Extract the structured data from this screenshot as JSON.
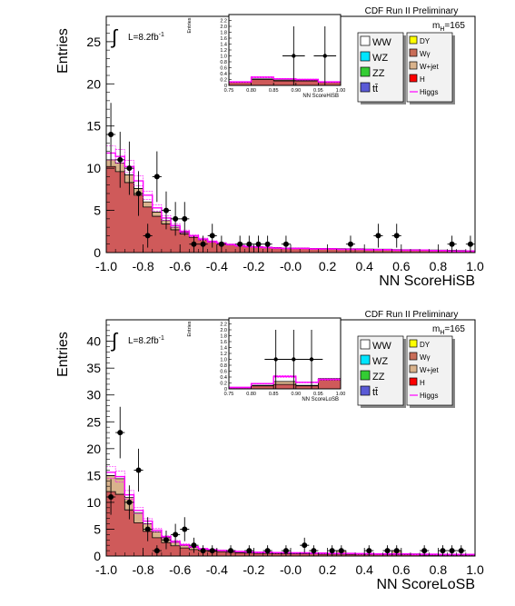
{
  "chart_data": [
    {
      "type": "bar",
      "ylabel": "Entries",
      "xlabel": "NN ScoreHiSB",
      "title": "CDF Run II Preliminary",
      "lumi_label": "L=8.2fb",
      "lumi_sup": "-1",
      "mass_label": "m",
      "mass_sub": "H",
      "mass_value": "=165",
      "xlim": [
        -1.0,
        1.0
      ],
      "ylim": [
        0,
        28
      ],
      "xticks": [
        "-1.0",
        "-0.8",
        "-0.6",
        "-0.4",
        "-0.2",
        "-0.0",
        "0.2",
        "0.4",
        "0.6",
        "0.8",
        "1.0"
      ],
      "yticks": [
        "0",
        "5",
        "10",
        "15",
        "20",
        "25"
      ],
      "yticks_vals": [
        0,
        5,
        10,
        15,
        20,
        25
      ],
      "bin_edges": [
        -1.0,
        -0.95,
        -0.9,
        -0.85,
        -0.8,
        -0.75,
        -0.7,
        -0.65,
        -0.6,
        -0.55,
        -0.5,
        -0.45,
        -0.4,
        -0.35,
        -0.3,
        -0.25,
        -0.2,
        -0.15,
        -0.1,
        -0.05,
        0.0,
        0.05,
        0.1,
        0.15,
        0.2,
        0.25,
        0.3,
        0.35,
        0.4,
        0.45,
        0.5,
        0.55,
        0.6,
        0.65,
        0.7,
        0.75,
        0.8,
        0.85,
        0.9,
        0.95,
        1.0
      ],
      "background": [
        10.2,
        9.6,
        8.3,
        6.8,
        5.4,
        4.3,
        3.4,
        2.7,
        2.2,
        1.8,
        1.5,
        1.25,
        1.05,
        0.9,
        0.8,
        0.7,
        0.65,
        0.6,
        0.55,
        0.5,
        0.5,
        0.5,
        0.5,
        0.45,
        0.45,
        0.45,
        0.4,
        0.4,
        0.4,
        0.35,
        0.35,
        0.35,
        0.3,
        0.3,
        0.3,
        0.3,
        0.25,
        0.25,
        0.2,
        0.2
      ],
      "total": [
        11.0,
        10.6,
        9.2,
        7.6,
        6.0,
        4.8,
        3.8,
        3.0,
        2.4,
        2.0,
        1.6,
        1.35,
        1.15,
        1.0,
        0.85,
        0.75,
        0.7,
        0.65,
        0.6,
        0.55,
        0.55,
        0.55,
        0.5,
        0.5,
        0.5,
        0.45,
        0.45,
        0.45,
        0.4,
        0.4,
        0.4,
        0.35,
        0.35,
        0.35,
        0.3,
        0.3,
        0.3,
        0.25,
        0.25,
        0.2
      ],
      "higgs": [
        11.8,
        11.4,
        10.2,
        8.5,
        6.8,
        5.3,
        4.1,
        3.2,
        2.5,
        2.0,
        1.6,
        1.3,
        1.1,
        0.95,
        0.8,
        0.7,
        0.65,
        0.6,
        0.55,
        0.5,
        0.5,
        0.5,
        0.45,
        0.45,
        0.45,
        0.4,
        0.4,
        0.4,
        0.35,
        0.35,
        0.35,
        0.3,
        0.3,
        0.3,
        0.3,
        0.25,
        0.25,
        0.2,
        0.2,
        0.2
      ],
      "data_x": [
        -0.975,
        -0.925,
        -0.875,
        -0.825,
        -0.775,
        -0.725,
        -0.675,
        -0.625,
        -0.575,
        -0.525,
        -0.475,
        -0.425,
        -0.375,
        -0.275,
        -0.225,
        -0.175,
        -0.125,
        -0.025,
        0.325,
        0.475,
        0.575,
        0.875,
        0.975
      ],
      "data_y": [
        14,
        11,
        10,
        7,
        2,
        9,
        5,
        4,
        4,
        1,
        1,
        2,
        1,
        1,
        1,
        1,
        1,
        1,
        1,
        2,
        2,
        1,
        1
      ],
      "inset": {
        "xlabel": "NN ScoreHiSB",
        "ylabel": "Entries",
        "xlim": [
          0.75,
          1.0
        ],
        "ylim": [
          0,
          2.4
        ],
        "xticks": [
          "0.75",
          "0.80",
          "0.85",
          "0.90",
          "0.95",
          "1.00"
        ],
        "yticks": [
          "0",
          "0.2",
          "0.4",
          "0.6",
          "0.8",
          "1.0",
          "1.2",
          "1.4",
          "1.6",
          "1.8",
          "2.0",
          "2.2"
        ],
        "bin_edges": [
          0.75,
          0.8,
          0.85,
          0.9,
          0.95,
          1.0
        ],
        "background": [
          0.1,
          0.2,
          0.15,
          0.15,
          0.1
        ],
        "total": [
          0.12,
          0.22,
          0.18,
          0.17,
          0.12
        ],
        "higgs": [
          0.12,
          0.28,
          0.22,
          0.2,
          0.12
        ],
        "data_x": [
          0.895,
          0.965
        ],
        "data_y": [
          1.0,
          1.0
        ]
      }
    },
    {
      "type": "bar",
      "ylabel": "Entries",
      "xlabel": "NN ScoreLoSB",
      "title": "CDF Run II Preliminary",
      "lumi_label": "L=8.2fb",
      "lumi_sup": "-1",
      "mass_label": "m",
      "mass_sub": "H",
      "mass_value": "=165",
      "xlim": [
        -1.0,
        1.0
      ],
      "ylim": [
        0,
        44
      ],
      "xticks": [
        "-1.0",
        "-0.8",
        "-0.6",
        "-0.4",
        "-0.2",
        "-0.0",
        "0.2",
        "0.4",
        "0.6",
        "0.8",
        "1.0"
      ],
      "yticks": [
        "0",
        "5",
        "10",
        "15",
        "20",
        "25",
        "30",
        "35",
        "40"
      ],
      "yticks_vals": [
        0,
        5,
        10,
        15,
        20,
        25,
        30,
        35,
        40
      ],
      "bin_edges": [
        -1.0,
        -0.95,
        -0.9,
        -0.85,
        -0.8,
        -0.75,
        -0.7,
        -0.65,
        -0.6,
        -0.55,
        -0.5,
        -0.45,
        -0.4,
        -0.35,
        -0.3,
        -0.25,
        -0.2,
        -0.15,
        -0.1,
        -0.05,
        0.0,
        0.05,
        0.1,
        0.15,
        0.2,
        0.25,
        0.3,
        0.35,
        0.4,
        0.45,
        0.5,
        0.55,
        0.6,
        0.65,
        0.7,
        0.75,
        0.8,
        0.85,
        0.9,
        0.95,
        1.0
      ],
      "background": [
        12.0,
        11.5,
        8.6,
        6.2,
        4.6,
        3.4,
        2.5,
        1.9,
        1.5,
        1.2,
        1.0,
        0.9,
        0.8,
        0.7,
        0.6,
        0.55,
        0.5,
        0.5,
        0.45,
        0.45,
        0.4,
        0.4,
        0.4,
        0.35,
        0.35,
        0.35,
        0.3,
        0.3,
        0.3,
        0.3,
        0.25,
        0.25,
        0.25,
        0.25,
        0.2,
        0.2,
        0.2,
        0.2,
        0.2,
        0.2
      ],
      "total": [
        15.0,
        14.4,
        10.9,
        8.0,
        6.0,
        4.5,
        3.4,
        2.6,
        2.0,
        1.6,
        1.3,
        1.15,
        1.0,
        0.9,
        0.8,
        0.7,
        0.65,
        0.65,
        0.6,
        0.6,
        0.55,
        0.55,
        0.55,
        0.5,
        0.5,
        1.0,
        0.5,
        0.45,
        0.45,
        0.4,
        0.4,
        1.0,
        0.4,
        0.4,
        0.35,
        0.35,
        0.35,
        0.3,
        0.3,
        0.3
      ],
      "higgs": [
        15.6,
        14.8,
        11.4,
        8.5,
        6.5,
        4.8,
        3.6,
        2.7,
        2.1,
        1.7,
        1.35,
        1.2,
        1.05,
        0.95,
        0.85,
        0.75,
        0.7,
        0.7,
        0.65,
        0.65,
        0.6,
        0.6,
        0.55,
        0.55,
        0.5,
        0.5,
        0.5,
        0.45,
        0.45,
        0.4,
        0.4,
        0.4,
        0.4,
        0.35,
        0.35,
        0.35,
        0.3,
        0.3,
        0.3,
        0.3
      ],
      "data_x": [
        -0.975,
        -0.925,
        -0.875,
        -0.825,
        -0.775,
        -0.725,
        -0.675,
        -0.625,
        -0.575,
        -0.525,
        -0.475,
        -0.425,
        -0.325,
        -0.225,
        -0.125,
        -0.025,
        0.075,
        0.125,
        0.225,
        0.275,
        0.425,
        0.525,
        0.575,
        0.725,
        0.825,
        0.875,
        0.925
      ],
      "data_y": [
        11,
        23,
        10,
        16,
        5,
        1,
        3,
        4,
        5,
        2,
        1,
        1,
        1,
        1,
        1,
        1,
        2,
        1,
        1,
        1,
        1,
        1,
        1,
        1,
        1,
        1,
        1
      ],
      "inset": {
        "xlabel": "NN ScoreLoSB",
        "ylabel": "Entries",
        "xlim": [
          0.75,
          1.0
        ],
        "ylim": [
          0,
          2.4
        ],
        "xticks": [
          "0.75",
          "0.80",
          "0.85",
          "0.90",
          "0.95",
          "1.00"
        ],
        "yticks": [
          "0",
          "0.2",
          "0.4",
          "0.6",
          "0.8",
          "1.0",
          "1.2",
          "1.4",
          "1.6",
          "1.8",
          "2.0",
          "2.2"
        ],
        "bin_edges": [
          0.75,
          0.8,
          0.85,
          0.9,
          0.95,
          1.0
        ],
        "background": [
          0.05,
          0.1,
          0.15,
          0.1,
          0.3
        ],
        "total": [
          0.05,
          0.12,
          0.25,
          0.12,
          0.35
        ],
        "higgs": [
          0.05,
          0.18,
          0.42,
          0.22,
          0.32
        ],
        "data_x": [
          0.855,
          0.895,
          0.935
        ],
        "data_y": [
          1.0,
          1.0,
          1.0
        ]
      }
    }
  ],
  "legend": {
    "left": [
      {
        "label": "WW",
        "color": "#ffffff"
      },
      {
        "label": "WZ",
        "color": "#00e5ff"
      },
      {
        "label": "ZZ",
        "color": "#33cc33"
      },
      {
        "label": "tt̄",
        "color": "#5a5ad6"
      }
    ],
    "right": [
      {
        "label": "DY",
        "color": "#ffff00"
      },
      {
        "label": "Wγ",
        "color": "#c96d58"
      },
      {
        "label": "W+jet",
        "color": "#d9b38c"
      },
      {
        "label": "H",
        "color": "#ff0000"
      },
      {
        "label": "Higgs",
        "color": "#ff00ff",
        "line": true
      }
    ]
  },
  "colors": {
    "background_fill": "#cf5a5a",
    "wjet_fill": "#d9b38c",
    "higgs_line": "#ff00ff",
    "data_marker": "#000000"
  }
}
